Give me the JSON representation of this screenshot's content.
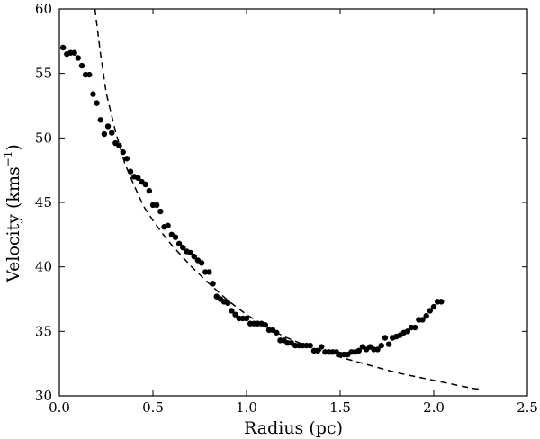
{
  "chart_data": {
    "type": "scatter",
    "xlabel": "Radius (pc)",
    "ylabel": "Velocity (kms",
    "ylabel_unit_sup": "−1",
    "ylabel_close": ")",
    "xlim": [
      0.0,
      2.5
    ],
    "ylim": [
      30,
      60
    ],
    "xticks": [
      "0.0",
      "0.5",
      "1.0",
      "1.5",
      "2.0",
      "2.5"
    ],
    "yticks": [
      "30",
      "35",
      "40",
      "45",
      "50",
      "55",
      "60"
    ],
    "grid": false,
    "legend": "none",
    "series": [
      {
        "style": "points",
        "color": "#000000",
        "x": [
          0.02,
          0.04,
          0.06,
          0.08,
          0.1,
          0.12,
          0.14,
          0.16,
          0.18,
          0.2,
          0.22,
          0.24,
          0.26,
          0.28,
          0.3,
          0.32,
          0.34,
          0.36,
          0.38,
          0.4,
          0.42,
          0.44,
          0.46,
          0.48,
          0.5,
          0.52,
          0.54,
          0.56,
          0.58,
          0.6,
          0.62,
          0.64,
          0.66,
          0.68,
          0.7,
          0.72,
          0.74,
          0.76,
          0.78,
          0.8,
          0.82,
          0.84,
          0.86,
          0.88,
          0.9,
          0.92,
          0.94,
          0.96,
          0.98,
          1.0,
          1.02,
          1.04,
          1.06,
          1.08,
          1.1,
          1.12,
          1.14,
          1.16,
          1.18,
          1.2,
          1.22,
          1.24,
          1.26,
          1.28,
          1.3,
          1.32,
          1.34,
          1.36,
          1.38,
          1.4,
          1.42,
          1.44,
          1.46,
          1.48,
          1.5,
          1.52,
          1.54,
          1.56,
          1.58,
          1.6,
          1.62,
          1.64,
          1.66,
          1.68,
          1.7,
          1.72,
          1.74,
          1.76,
          1.78,
          1.8,
          1.82,
          1.84,
          1.86,
          1.88,
          1.9,
          1.92,
          1.94,
          1.96,
          1.98,
          2.0,
          2.02,
          2.04
        ],
        "y": [
          57.0,
          56.5,
          56.6,
          56.6,
          56.2,
          55.6,
          54.9,
          54.9,
          53.4,
          52.7,
          51.4,
          50.3,
          50.9,
          50.4,
          49.6,
          49.4,
          48.9,
          48.4,
          47.4,
          47.0,
          46.9,
          46.6,
          46.4,
          45.9,
          44.8,
          44.8,
          44.3,
          43.1,
          43.2,
          42.5,
          42.3,
          41.8,
          41.5,
          41.2,
          41.1,
          40.8,
          40.5,
          40.3,
          39.6,
          39.6,
          38.7,
          37.7,
          37.5,
          37.3,
          37.2,
          36.6,
          36.3,
          36.0,
          36.0,
          36.0,
          35.6,
          35.6,
          35.6,
          35.6,
          35.5,
          35.1,
          35.1,
          34.9,
          34.3,
          34.3,
          34.1,
          34.1,
          33.9,
          33.9,
          33.9,
          33.9,
          33.9,
          33.5,
          33.5,
          33.8,
          33.4,
          33.4,
          33.4,
          33.4,
          33.2,
          33.2,
          33.2,
          33.4,
          33.4,
          33.5,
          33.8,
          33.6,
          33.8,
          33.6,
          33.6,
          33.9,
          34.5,
          34.0,
          34.5,
          34.6,
          34.7,
          34.9,
          35.0,
          35.3,
          35.3,
          35.9,
          35.9,
          36.2,
          36.6,
          36.9,
          37.3,
          37.3
        ]
      },
      {
        "style": "dashed-line",
        "color": "#000000",
        "x": [
          0.19,
          0.22,
          0.25,
          0.3,
          0.35,
          0.4,
          0.45,
          0.5,
          0.55,
          0.6,
          0.7,
          0.8,
          0.9,
          1.0,
          1.1,
          1.2,
          1.3,
          1.4,
          1.5,
          1.6,
          1.7,
          1.8,
          1.9,
          2.0,
          2.1,
          2.2,
          2.25
        ],
        "y": [
          60.0,
          56.5,
          53.5,
          50.5,
          48.0,
          46.3,
          44.7,
          43.6,
          42.6,
          41.7,
          40.1,
          38.7,
          37.4,
          36.3,
          35.4,
          34.6,
          34.0,
          33.5,
          33.0,
          32.6,
          32.2,
          31.8,
          31.5,
          31.2,
          30.9,
          30.6,
          30.5
        ]
      }
    ]
  }
}
